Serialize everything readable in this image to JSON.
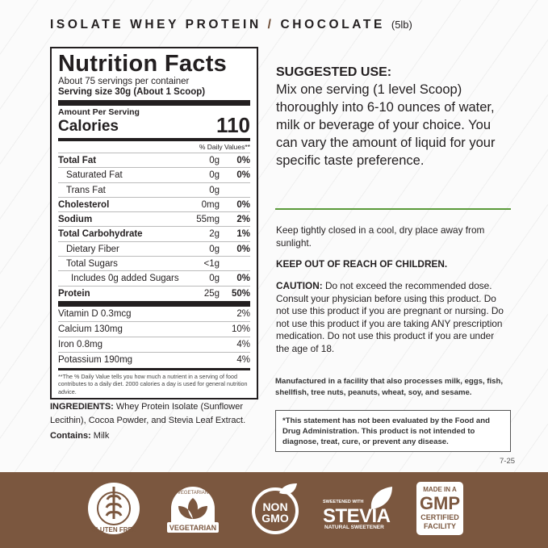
{
  "header": {
    "product": "ISOLATE WHEY PROTEIN",
    "separator": "/",
    "flavor": "CHOCOLATE",
    "size": "(5lb)"
  },
  "nutrition": {
    "title": "Nutrition Facts",
    "servings": "About 75 servings per container",
    "serving_size": "Serving size 30g (About 1 Scoop)",
    "amount_per_serving": "Amount Per Serving",
    "calories_label": "Calories",
    "calories": "110",
    "dv_header": "% Daily Values**",
    "rows": [
      {
        "name": "Total Fat",
        "amount": "0g",
        "dv": "0%"
      },
      {
        "name": "Saturated Fat",
        "amount": "0g",
        "dv": "0%"
      },
      {
        "name": "Trans Fat",
        "amount": "0g",
        "dv": ""
      },
      {
        "name": "Cholesterol",
        "amount": "0mg",
        "dv": "0%"
      },
      {
        "name": "Sodium",
        "amount": "55mg",
        "dv": "2%"
      },
      {
        "name": "Total Carbohydrate",
        "amount": "2g",
        "dv": "1%"
      },
      {
        "name": "Dietary Fiber",
        "amount": "0g",
        "dv": "0%"
      },
      {
        "name": "Total Sugars",
        "amount": "<1g",
        "dv": ""
      },
      {
        "name": "Includes 0g added Sugars",
        "amount": "0g",
        "dv": "0%"
      },
      {
        "name": "Protein",
        "amount": "25g",
        "dv": "50%"
      }
    ],
    "vitamins": [
      {
        "name": "Vitamin D 0.3mcg",
        "dv": "2%"
      },
      {
        "name": "Calcium 130mg",
        "dv": "10%"
      },
      {
        "name": "Iron 0.8mg",
        "dv": "4%"
      },
      {
        "name": "Potassium 190mg",
        "dv": "4%"
      }
    ],
    "footnote": "**The % Daily Value tells you how much a nutrient in a  serving of food contributes to a daily diet. 2000 calories a day is used for general nutrition advice."
  },
  "ingredients": {
    "label": "INGREDIENTS:",
    "text": " Whey Protein Isolate (Sunflower Lecithin), Cocoa Powder, and Stevia Leaf Extract.",
    "contains_label": "Contains:",
    "contains": " Milk"
  },
  "suggested_use": {
    "title": "SUGGESTED USE:",
    "text": "Mix one serving (1 level Scoop) thoroughly into 6-10 ounces of water, milk or beverage of your choice. You can vary the amount of liquid for your specific taste preference."
  },
  "storage": "Keep tightly closed in a cool, dry place away from sunlight.",
  "keep_out": "KEEP OUT OF REACH OF CHILDREN.",
  "caution": {
    "label": "CAUTION:",
    "text": " Do not exceed the recommended dose. Consult your physician before using this product. Do not use this product if you are pregnant or nursing. Do not use this product if you are taking ANY prescription medication. Do not use this product if you are under the age of 18."
  },
  "allergen": "Manufactured in a facility that also processes milk, eggs, fish, shellfish, tree nuts, peanuts, wheat, soy, and sesame.",
  "fda": "*This statement has not been evaluated by the Food and Drug Administration. This product is not intended to diagnose, treat, cure, or prevent any disease.",
  "code": "7-25",
  "badges": {
    "gluten_free": "GLUTEN FREE",
    "vegetarian_top": "VEGETARIAN",
    "vegetarian": "VEGETARIAN",
    "non": "NON",
    "gmo": "GMO",
    "stevia_top": "SWEETENED WITH",
    "stevia": "STEVIA",
    "stevia_bottom": "NATURAL SWEETENER",
    "gmp_top": "MADE IN A",
    "gmp": "GMP",
    "gmp_1": "CERTIFIED",
    "gmp_2": "FACILITY"
  },
  "colors": {
    "band": "#7b573f",
    "accent_line": "#5a9a3a"
  }
}
